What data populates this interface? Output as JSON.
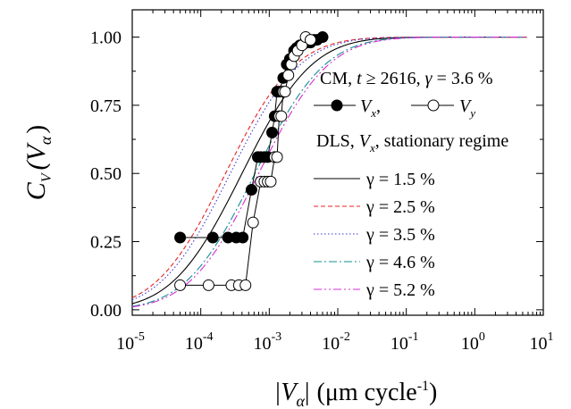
{
  "chart_data": {
    "type": "line",
    "x_scale": "log",
    "xlim": [
      1e-05,
      10
    ],
    "ylim": [
      -0.02,
      1.1
    ],
    "x_ticks": [
      {
        "value": 1e-05,
        "base": "10",
        "exp": "-5"
      },
      {
        "value": 0.0001,
        "base": "10",
        "exp": "-4"
      },
      {
        "value": 0.001,
        "base": "10",
        "exp": "-3"
      },
      {
        "value": 0.01,
        "base": "10",
        "exp": "-2"
      },
      {
        "value": 0.1,
        "base": "10",
        "exp": "-1"
      },
      {
        "value": 1,
        "base": "10",
        "exp": "0"
      },
      {
        "value": 10,
        "base": "10",
        "exp": "1"
      }
    ],
    "y_ticks": [
      {
        "value": 0.0,
        "label": "0.00"
      },
      {
        "value": 0.25,
        "label": "0.25"
      },
      {
        "value": 0.5,
        "label": "0.50"
      },
      {
        "value": 0.75,
        "label": "0.75"
      },
      {
        "value": 1.0,
        "label": "1.00"
      }
    ],
    "ylabel": {
      "main": "C",
      "sub1": "V",
      "open": "(V",
      "sub2": "α",
      "close": ")"
    },
    "xlabel": {
      "bar1": "|V",
      "sub": "α",
      "bar2": "|",
      "unit": "(μm cycle",
      "exp": "-1",
      "close": ")"
    },
    "legend_header1": {
      "text": "CM, ",
      "t": "t",
      "rest": " ≥ 2616, ",
      "g": "γ",
      "rest2": " = 3.6 %"
    },
    "legend_markers": {
      "vx": "V",
      "vx_sub": "x",
      "sep": ", ",
      "vy": "V",
      "vy_sub": "y"
    },
    "legend_header2": {
      "text": "DLS, ",
      "v": "V",
      "v_sub": "x",
      "rest": ", stationary regime"
    },
    "legend_position": "right",
    "grid": false,
    "series": [
      {
        "name": "γ = 1.5 %",
        "color": "#000000",
        "dash": "",
        "x0": 0.0004,
        "s": 0.8
      },
      {
        "name": "γ = 2.5 %",
        "color": "#e8231f",
        "dash": "5,3",
        "x0": 0.00023,
        "s": 0.8
      },
      {
        "name": "γ = 3.5 %",
        "color": "#3a3ad8",
        "dash": "1.5,2.5",
        "x0": 0.00027,
        "s": 0.8
      },
      {
        "name": "γ = 4.6 %",
        "color": "#138f8f",
        "dash": "9,3,2,3",
        "x0": 0.00062,
        "s": 0.8
      },
      {
        "name": "γ = 5.2 %",
        "color": "#d52bd5",
        "dash": "9,3,2,3,2,3",
        "x0": 0.0007,
        "s": 0.8
      }
    ],
    "markers": {
      "vx": {
        "label": "V_x",
        "fill": "#000000",
        "x": [
          5e-05,
          0.00015,
          0.00025,
          0.00033,
          0.00041,
          0.00055,
          0.00068,
          0.00075,
          0.00085,
          0.00095,
          0.0011,
          0.0012,
          0.0013,
          0.0014,
          0.0016,
          0.0018,
          0.002,
          0.0023,
          0.0025,
          0.0028,
          0.003,
          0.0035,
          0.004,
          0.0045,
          0.005,
          0.006
        ],
        "y": [
          0.265,
          0.265,
          0.265,
          0.265,
          0.265,
          0.44,
          0.56,
          0.56,
          0.56,
          0.56,
          0.65,
          0.71,
          0.8,
          0.8,
          0.85,
          0.9,
          0.92,
          0.95,
          0.96,
          0.97,
          0.97,
          0.98,
          0.98,
          0.99,
          0.99,
          1.0
        ]
      },
      "vy": {
        "label": "V_y",
        "fill": "#ffffff",
        "x": [
          5e-05,
          0.00013,
          0.00028,
          0.00036,
          0.00045,
          0.00058,
          0.00075,
          0.00085,
          0.00095,
          0.00105,
          0.0012,
          0.0013,
          0.0014,
          0.0015,
          0.0016,
          0.0017,
          0.0019,
          0.0021,
          0.0023,
          0.0026,
          0.003,
          0.0034,
          0.004
        ],
        "y": [
          0.09,
          0.09,
          0.09,
          0.09,
          0.09,
          0.32,
          0.47,
          0.47,
          0.47,
          0.47,
          0.56,
          0.56,
          0.71,
          0.71,
          0.8,
          0.8,
          0.86,
          0.9,
          0.93,
          0.95,
          0.97,
          1.0,
          0.99
        ]
      }
    }
  }
}
